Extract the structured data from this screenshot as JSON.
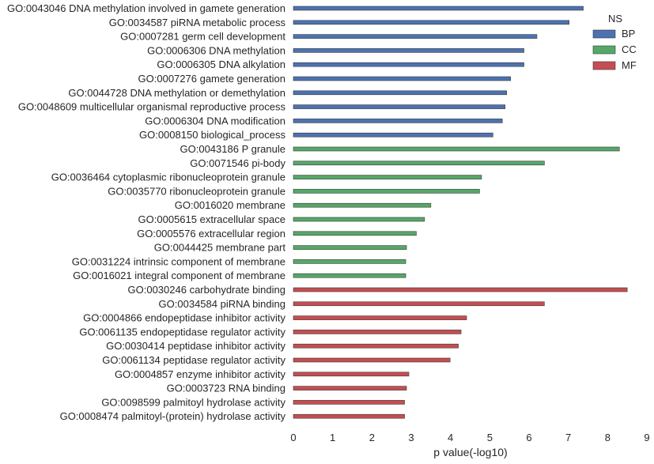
{
  "chart_data": {
    "type": "bar",
    "orientation": "horizontal",
    "xlabel": "p value(-log10)",
    "ylabel": "",
    "xlim": [
      0,
      9
    ],
    "xticks": [
      "0",
      "1",
      "2",
      "3",
      "4",
      "5",
      "6",
      "7",
      "8",
      "9"
    ],
    "grid": false,
    "legend": {
      "title": "NS",
      "placement": "top-right"
    },
    "series": [
      {
        "name": "BP",
        "color": "#4c72b0",
        "categories": [
          "GO:0043046 DNA methylation involved in gamete generation",
          "GO:0034587 piRNA metabolic process",
          "GO:0007281 germ cell development",
          "GO:0006306 DNA methylation",
          "GO:0006305 DNA alkylation",
          "GO:0007276 gamete generation",
          "GO:0044728 DNA methylation or demethylation",
          "GO:0048609 multicellular organismal reproductive process",
          "GO:0006304 DNA modification",
          "GO:0008150 biological_process"
        ],
        "values": [
          7.38,
          7.02,
          6.2,
          5.87,
          5.87,
          5.53,
          5.43,
          5.39,
          5.32,
          5.08
        ]
      },
      {
        "name": "CC",
        "color": "#55a868",
        "categories": [
          "GO:0043186 P granule",
          "GO:0071546 pi-body",
          "GO:0036464 cytoplasmic ribonucleoprotein granule",
          "GO:0035770 ribonucleoprotein granule",
          "GO:0016020 membrane",
          "GO:0005615 extracellular space",
          "GO:0005576 extracellular region",
          "GO:0044425 membrane part",
          "GO:0031224 intrinsic component of membrane",
          "GO:0016021 integral component of membrane"
        ],
        "values": [
          8.3,
          6.39,
          4.79,
          4.74,
          3.5,
          3.34,
          3.13,
          2.88,
          2.86,
          2.86
        ]
      },
      {
        "name": "MF",
        "color": "#c44e52",
        "categories": [
          "GO:0030246 carbohydrate binding",
          "GO:0034584 piRNA binding",
          "GO:0004866 endopeptidase inhibitor activity",
          "GO:0061135 endopeptidase regulator activity",
          "GO:0030414 peptidase inhibitor activity",
          "GO:0061134 peptidase regulator activity",
          "GO:0004857 enzyme inhibitor activity",
          "GO:0003723 RNA binding",
          "GO:0098599 palmitoyl hydrolase activity",
          "GO:0008474 palmitoyl-(protein) hydrolase activity"
        ],
        "values": [
          8.5,
          6.39,
          4.41,
          4.27,
          4.2,
          3.99,
          2.94,
          2.88,
          2.83,
          2.83
        ]
      }
    ]
  }
}
